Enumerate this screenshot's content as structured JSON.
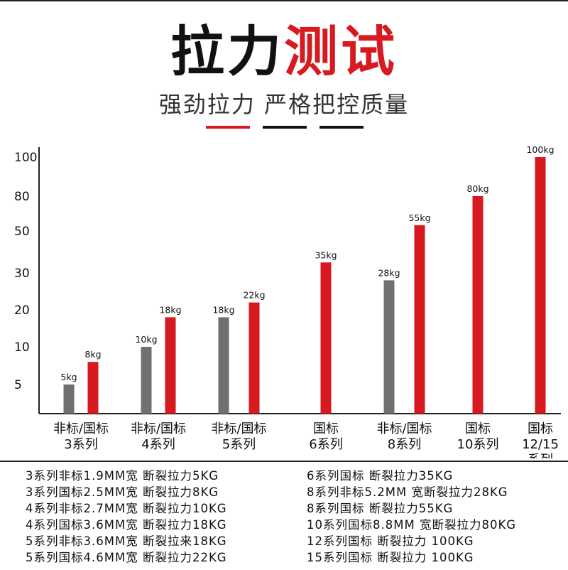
{
  "header": {
    "title_black": "拉力",
    "title_red": "测试",
    "subtitle": "强劲拉力 严格把控质量"
  },
  "colors": {
    "accent_red": "#d71920",
    "gray_bar": "#707070",
    "axis": "#222222",
    "dash_black": "#111111"
  },
  "chart_data": {
    "type": "bar",
    "title": "",
    "xlabel": "",
    "ylabel": "",
    "y_ticks": [
      "5",
      "10",
      "20",
      "30",
      "50",
      "80",
      "100"
    ],
    "groups": [
      {
        "label": [
          "非标/国标",
          "3系列"
        ],
        "bars": [
          {
            "kind": "非标",
            "value": 5,
            "label": "5kg"
          },
          {
            "kind": "国标",
            "value": 8,
            "label": "8kg"
          }
        ]
      },
      {
        "label": [
          "非标/国标",
          "4系列"
        ],
        "bars": [
          {
            "kind": "非标",
            "value": 10,
            "label": "10kg"
          },
          {
            "kind": "国标",
            "value": 18,
            "label": "18kg"
          }
        ]
      },
      {
        "label": [
          "非标/国标",
          "5系列"
        ],
        "bars": [
          {
            "kind": "非标",
            "value": 18,
            "label": "18kg"
          },
          {
            "kind": "国标",
            "value": 22,
            "label": "22kg"
          }
        ]
      },
      {
        "label": [
          "国标",
          "6系列"
        ],
        "bars": [
          {
            "kind": "国标",
            "value": 35,
            "label": "35kg"
          }
        ]
      },
      {
        "label": [
          "非标/国标",
          "8系列"
        ],
        "bars": [
          {
            "kind": "非标",
            "value": 28,
            "label": "28kg"
          },
          {
            "kind": "国标",
            "value": 55,
            "label": "55kg"
          }
        ]
      },
      {
        "label": [
          "国标",
          "10系列"
        ],
        "bars": [
          {
            "kind": "国标",
            "value": 80,
            "label": "80kg"
          }
        ]
      },
      {
        "label": [
          "国标",
          "12/15",
          "系列"
        ],
        "bars": [
          {
            "kind": "国标",
            "value": 100,
            "label": "100kg"
          }
        ]
      }
    ]
  },
  "legend": {
    "left": [
      "3系列非标1.9MM宽 断裂拉力5KG",
      "3系列国标2.5MM宽 断裂拉力8KG",
      "4系列非标2.7MM宽 断裂拉力10KG",
      "4系列国标3.6MM宽 断裂拉力18KG",
      "5系列非标3.6MM宽 断裂拉来18KG",
      "5系列国标4.6MM宽 断裂拉力22KG"
    ],
    "right": [
      "6系列国标 断裂拉力35KG",
      "8系列非标5.2MM 宽断裂拉力28KG",
      "8系列国标 断裂拉力55KG",
      "10系列国标8.8MM 宽断裂拉力80KG",
      "12系列国标 断裂拉力 100KG",
      "15系列国标 断裂拉力 100KG"
    ]
  }
}
